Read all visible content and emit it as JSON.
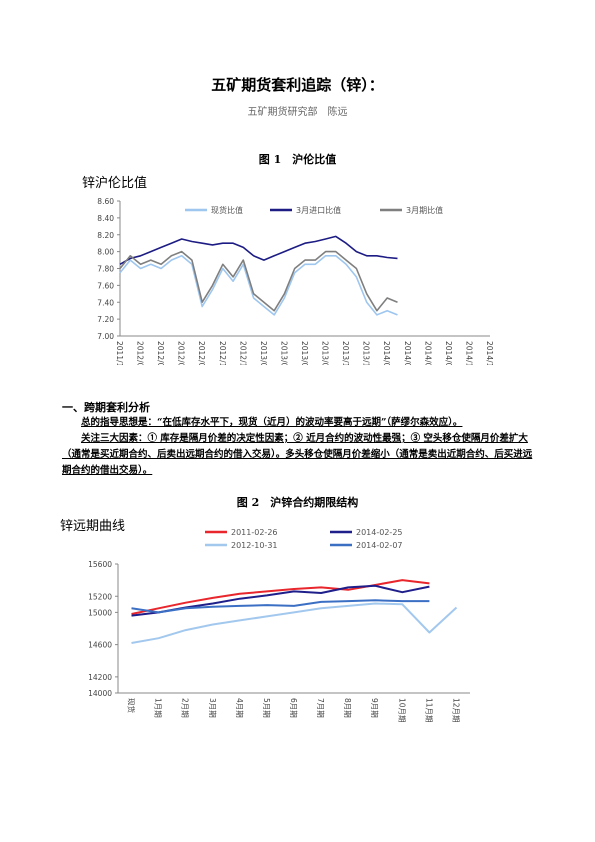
{
  "document": {
    "title": "五矿期货套利追踪（锌）：",
    "author": "五矿期货研究部　陈远",
    "figure1_caption": "图 1　沪伦比值",
    "section": "一、跨期套利分析",
    "paragraphs": [
      "总的指导思想是：“在低库存水平下，现货（近月）的波动率要高于远期”（萨缪尔森效应）。",
      "关注三大因素：① 库存是隔月价差的决定性因素；② 近月合约的波动性最强；③ 空头移仓使隔月价差扩大（通常是买近期合约、后卖出远期合约的借入交易）。多头移仓使隔月价差缩小（通常是卖出近期合约、后买进远期合约的借出交易）。"
    ],
    "figure2_caption": "图 2　沪锌合约期限结构"
  },
  "chart_data": [
    {
      "type": "line",
      "title": "锌沪伦比值",
      "grid": false,
      "legend": "top",
      "categories": [
        "2011/12",
        null,
        "2012/02",
        null,
        "2012/04",
        null,
        "2012/06",
        null,
        "2012/08",
        null,
        "2012/10",
        null,
        "2012/12",
        null,
        "2013/02",
        null,
        "2013/04",
        null,
        "2013/06",
        null,
        "2013/08",
        null,
        "2013/10",
        null,
        "2013/12",
        null,
        "2014/02",
        null,
        "2014/04",
        null,
        "2014/06",
        null,
        "2014/08",
        null,
        "2014/10",
        null,
        "2014/12"
      ],
      "ylim": [
        7.0,
        8.6
      ],
      "yticks": [
        {
          "value": 7.0,
          "label": "7.00"
        },
        {
          "value": 7.2,
          "label": "7.20"
        },
        {
          "value": 7.4,
          "label": "7.40"
        },
        {
          "value": 7.6,
          "label": "7.60"
        },
        {
          "value": 7.8,
          "label": "7.80"
        },
        {
          "value": 8.0,
          "label": "8.00"
        },
        {
          "value": 8.2,
          "label": "8.20"
        },
        {
          "value": 8.4,
          "label": "8.40"
        },
        {
          "value": 8.6,
          "label": "8.60"
        }
      ],
      "series": [
        {
          "name": "现货比值",
          "color": "#9ec6ee",
          "values": [
            7.75,
            7.9,
            7.8,
            7.85,
            7.8,
            7.9,
            7.95,
            7.85,
            7.35,
            7.55,
            7.8,
            7.65,
            7.85,
            7.45,
            7.35,
            7.25,
            7.45,
            7.75,
            7.85,
            7.85,
            7.95,
            7.95,
            7.85,
            7.7,
            7.4,
            7.25,
            7.3,
            7.25,
            null,
            null,
            null,
            null,
            null,
            null,
            null,
            null,
            null
          ]
        },
        {
          "name": "3月进口比值",
          "color": "#1c1c84",
          "values": [
            7.85,
            7.92,
            7.95,
            8.0,
            8.05,
            8.1,
            8.15,
            8.12,
            8.1,
            8.08,
            8.1,
            8.1,
            8.05,
            7.95,
            7.9,
            7.95,
            8.0,
            8.05,
            8.1,
            8.12,
            8.15,
            8.18,
            8.1,
            8.0,
            7.95,
            7.95,
            7.93,
            7.92,
            null,
            null,
            null,
            null,
            null,
            null,
            null,
            null,
            null
          ]
        },
        {
          "name": "3月期比值",
          "color": "#7f7f7f",
          "values": [
            7.8,
            7.95,
            7.85,
            7.9,
            7.85,
            7.95,
            8.0,
            7.9,
            7.4,
            7.6,
            7.85,
            7.7,
            7.9,
            7.5,
            7.4,
            7.3,
            7.5,
            7.8,
            7.9,
            7.9,
            8.0,
            8.0,
            7.9,
            7.8,
            7.5,
            7.3,
            7.45,
            7.4,
            null,
            null,
            null,
            null,
            null,
            null,
            null,
            null,
            null
          ]
        }
      ]
    },
    {
      "type": "line",
      "title": "锌远期曲线",
      "grid": false,
      "legend": "top",
      "categories": [
        "现货",
        "1月期",
        "2月期",
        "3月期",
        "4月期",
        "5月期",
        "6月期",
        "7月期",
        "8月期",
        "9月期",
        "10月期",
        "11月期",
        "12月期"
      ],
      "ylim": [
        14000,
        15600
      ],
      "yticks": [
        14000,
        14200,
        14600,
        15000,
        15200,
        15600
      ],
      "series": [
        {
          "name": "2011-02-26",
          "color": "#e8262c",
          "values": [
            14980,
            15050,
            15120,
            15180,
            15230,
            15260,
            15290,
            15310,
            15280,
            15340,
            15400,
            15360,
            null
          ]
        },
        {
          "name": "2014-02-25",
          "color": "#1f1f8c",
          "values": [
            14960,
            15000,
            15060,
            15110,
            15170,
            15210,
            15260,
            15240,
            15310,
            15330,
            15250,
            15320,
            null
          ]
        },
        {
          "name": "2012-10-31",
          "color": "#a3c8ee",
          "values": [
            14620,
            14680,
            14780,
            14850,
            14900,
            14950,
            15000,
            15050,
            15080,
            15110,
            15100,
            14750,
            15060
          ]
        },
        {
          "name": "2014-02-07",
          "color": "#3b6fc4",
          "values": [
            15050,
            15000,
            15050,
            15070,
            15080,
            15090,
            15080,
            15130,
            15140,
            15150,
            15140,
            15140,
            null
          ]
        }
      ]
    }
  ]
}
